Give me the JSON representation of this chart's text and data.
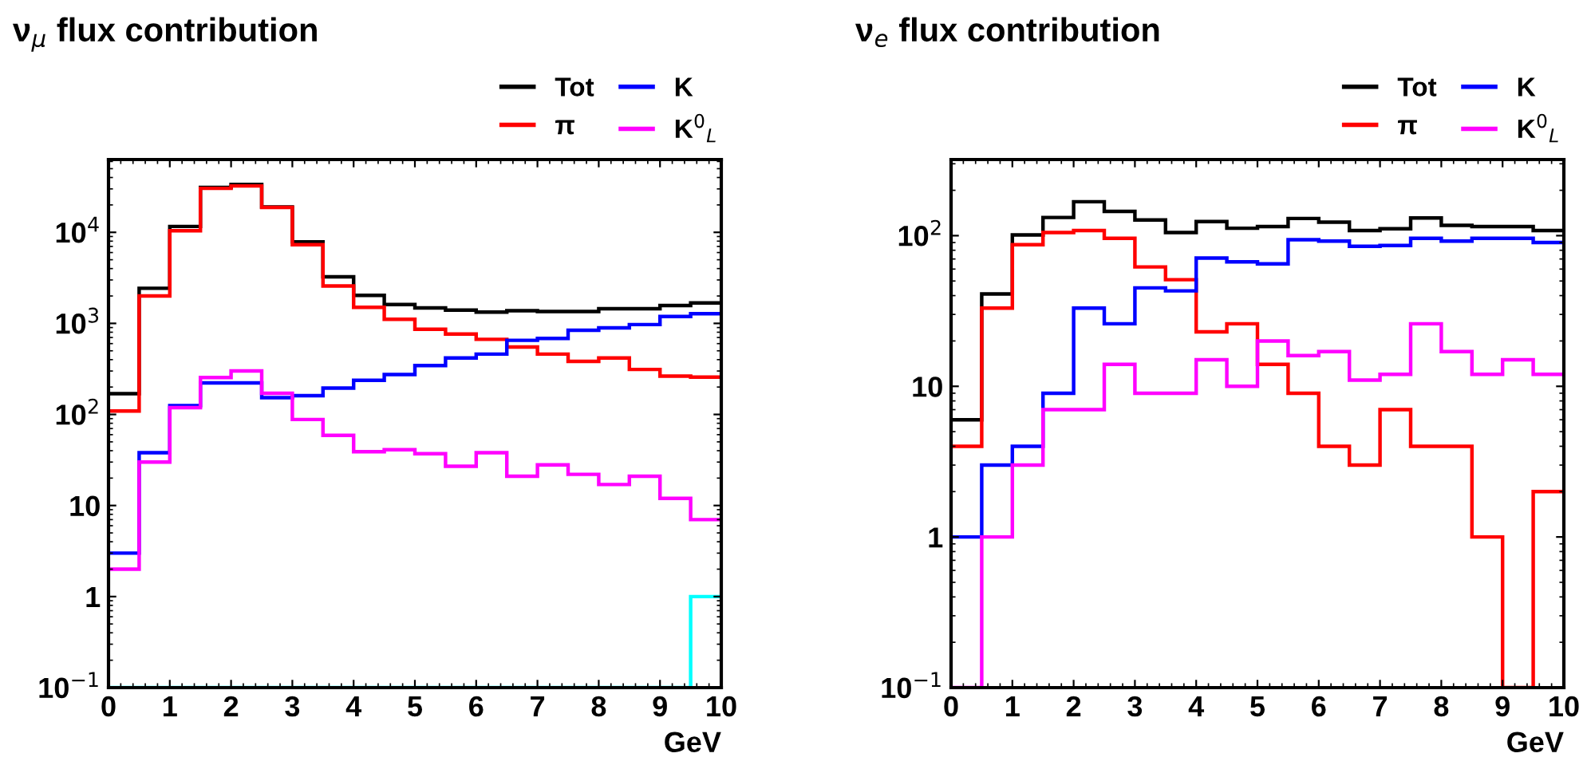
{
  "chart_data": [
    {
      "type": "histogram",
      "title": "ν$_{μ}$ flux contribution",
      "xlabel": "GeV",
      "log": "y",
      "grid": false,
      "legend": "top right",
      "bins": [
        0,
        0.5,
        1,
        1.5,
        2,
        2.5,
        3,
        3.5,
        4,
        4.5,
        5,
        5.5,
        6,
        6.5,
        7,
        7.5,
        8,
        8.5,
        9,
        9.5,
        10
      ],
      "xlim": [
        0,
        10
      ],
      "xticks": [
        0,
        1,
        2,
        3,
        4,
        5,
        6,
        7,
        8,
        9,
        10
      ],
      "ylim": [
        0.1,
        63000
      ],
      "yticks": [
        {
          "value": 0.1,
          "label": "10$^{−1}$"
        },
        1,
        10,
        {
          "value": 100,
          "label": "10$^{2}$"
        },
        {
          "value": 1000,
          "label": "10$^{3}$"
        },
        {
          "value": 10000,
          "label": "10$^{4}$"
        }
      ],
      "series": [
        {
          "name": "Tot",
          "color": "#000000",
          "values": [
            169,
            2430,
            11600,
            31100,
            33500,
            19000,
            7850,
            3250,
            2030,
            1610,
            1480,
            1400,
            1330,
            1380,
            1350,
            1350,
            1450,
            1450,
            1570,
            1680
          ]
        },
        {
          "name": "π",
          "color": "#ff0000",
          "values": [
            109,
            2000,
            10400,
            30400,
            32300,
            18800,
            7310,
            2580,
            1500,
            1110,
            861,
            763,
            668,
            551,
            460,
            383,
            417,
            312,
            264,
            257
          ]
        },
        {
          "name": "K",
          "color": "#0000ff",
          "values": [
            3,
            38,
            125,
            222,
            222,
            153,
            161,
            195,
            237,
            274,
            344,
            417,
            460,
            652,
            684,
            840,
            893,
            971,
            1190,
            1280
          ]
        },
        {
          "name": "K$^{0}$$_{L}$",
          "color": "#ff00ff",
          "values": [
            2,
            30,
            119,
            254,
            301,
            171,
            88,
            59,
            39,
            41,
            37,
            27,
            38,
            21,
            28,
            22,
            17,
            21,
            12,
            7
          ]
        },
        {
          "color": "#00ffff",
          "values": [
            0.1,
            0.1,
            0.1,
            0.1,
            0.1,
            0.1,
            0.1,
            0.1,
            0.1,
            0.1,
            0.1,
            0.1,
            0.1,
            0.1,
            0.1,
            0.1,
            0.1,
            0.1,
            0.1,
            1
          ]
        }
      ]
    },
    {
      "type": "histogram",
      "title": "ν$_{e}$ flux contribution",
      "xlabel": "GeV",
      "log": "y",
      "grid": false,
      "legend": "top right",
      "bins": [
        0,
        0.5,
        1,
        1.5,
        2,
        2.5,
        3,
        3.5,
        4,
        4.5,
        5,
        5.5,
        6,
        6.5,
        7,
        7.5,
        8,
        8.5,
        9,
        9.5,
        10
      ],
      "xlim": [
        0,
        10
      ],
      "xticks": [
        0,
        1,
        2,
        3,
        4,
        5,
        6,
        7,
        8,
        9,
        10
      ],
      "ylim": [
        0.1,
        320
      ],
      "yticks": [
        {
          "value": 0.1,
          "label": "10$^{−1}$"
        },
        1,
        10,
        {
          "value": 100,
          "label": "10$^{2}$"
        }
      ],
      "series": [
        {
          "name": "Tot",
          "color": "#000000",
          "values": [
            6,
            41,
            101,
            132,
            168,
            145,
            127,
            105,
            124,
            112,
            115,
            130,
            123,
            108,
            111,
            131,
            117,
            115,
            115,
            108
          ]
        },
        {
          "name": "π",
          "color": "#ff0000",
          "values": [
            4,
            33,
            87,
            105,
            108,
            96,
            62,
            51,
            23,
            26,
            14,
            9,
            4,
            3,
            7,
            4,
            4,
            1,
            0.1,
            2
          ]
        },
        {
          "name": "K",
          "color": "#0000ff",
          "values": [
            1,
            3,
            4,
            9,
            33,
            26,
            45,
            43,
            71,
            67,
            65,
            94,
            92,
            85,
            86,
            96,
            92,
            96,
            96,
            90
          ]
        },
        {
          "name": "K$^{0}$$_{L}$",
          "color": "#ff00ff",
          "values": [
            0.1,
            1,
            3,
            7,
            7,
            14,
            9,
            9,
            15,
            10,
            20,
            16,
            17,
            11,
            12,
            26,
            17,
            12,
            15,
            12
          ]
        }
      ]
    }
  ]
}
